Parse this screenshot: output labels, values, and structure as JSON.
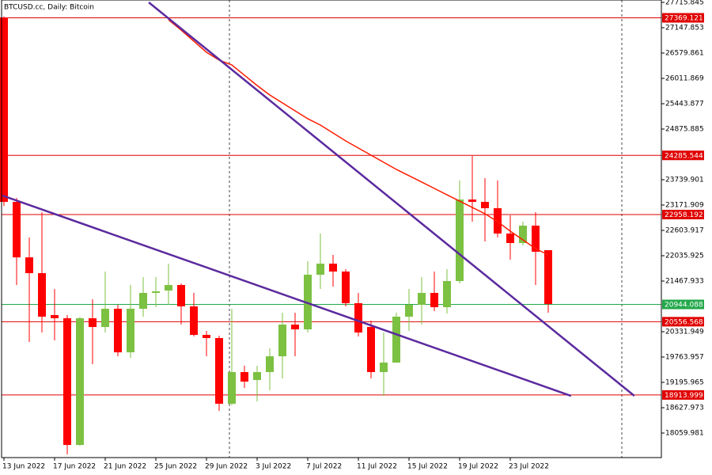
{
  "chart_data": {
    "type": "candlestick",
    "title": "BTCUSD.cc, Daily:  Bitcoin",
    "categories": [
      "13 Jun 2022",
      null,
      null,
      null,
      "17 Jun 2022",
      null,
      null,
      null,
      "21 Jun 2022",
      null,
      null,
      null,
      "25 Jun 2022",
      null,
      null,
      null,
      "29 Jun 2022",
      null,
      null,
      null,
      "3 Jul 2022",
      null,
      null,
      null,
      "7 Jul 2022",
      null,
      null,
      null,
      "11 Jul 2022",
      null,
      null,
      null,
      "15 Jul 2022",
      null,
      null,
      null,
      "19 Jul 2022",
      null,
      null,
      null,
      "23 Jul 2022",
      null,
      null,
      null
    ],
    "open": [
      27378,
      23243,
      21999,
      21645,
      20705,
      20634,
      17793,
      20634,
      20438,
      20847,
      19870,
      20847,
      21202,
      21255,
      21379,
      20900,
      20261,
      20190,
      18717,
      19427,
      19249,
      19427,
      19781,
      20492,
      20385,
      21610,
      21858,
      21681,
      20971,
      20438,
      19427,
      19640,
      20669,
      20935,
      21202,
      20882,
      21468,
      23296,
      23243,
      23101,
      22533,
      22320,
      22710,
      22160
    ],
    "high": [
      27400,
      23331,
      22444,
      23012,
      21290,
      20705,
      20669,
      21060,
      21681,
      20935,
      21379,
      21557,
      21557,
      21858,
      21415,
      21202,
      20350,
      20243,
      20847,
      19569,
      19569,
      19959,
      20758,
      20758,
      21912,
      22533,
      22054,
      21734,
      21202,
      20580,
      20314,
      20758,
      21290,
      21557,
      21681,
      21734,
      23722,
      24272,
      23775,
      23722,
      22941,
      22799,
      23012,
      22160
    ],
    "low": [
      23150,
      21379,
      20101,
      20314,
      20137,
      17580,
      17776,
      19604,
      20314,
      19781,
      19746,
      20669,
      20882,
      20935,
      20492,
      20225,
      19781,
      18557,
      18681,
      19072,
      18770,
      19018,
      19285,
      19781,
      20314,
      21290,
      21344,
      20900,
      20225,
      19285,
      18894,
      19640,
      20350,
      20492,
      20793,
      20740,
      21415,
      22799,
      22355,
      22444,
      21947,
      22267,
      21379,
      20758
    ],
    "close": [
      23243,
      21999,
      21645,
      20669,
      20634,
      17793,
      20634,
      20438,
      20847,
      19870,
      20847,
      21202,
      21237,
      21379,
      20900,
      20261,
      20190,
      18717,
      19427,
      19214,
      19427,
      19781,
      20492,
      20385,
      21610,
      21858,
      21681,
      20971,
      20314,
      19427,
      19640,
      20669,
      20935,
      21202,
      20882,
      21468,
      23296,
      23243,
      23101,
      22533,
      22320,
      22710,
      22125,
      20953
    ],
    "up_color": "#7cc142",
    "down_color": "#ff0000",
    "ma": {
      "color": "#ff1a00",
      "values": [
        null,
        null,
        null,
        null,
        null,
        null,
        null,
        null,
        null,
        null,
        null,
        null,
        null,
        27325,
        27094,
        26846,
        26598,
        26420,
        26313,
        26082,
        25852,
        25639,
        25462,
        25284,
        25107,
        24965,
        24787,
        24610,
        24450,
        24290,
        24130,
        23971,
        23829,
        23687,
        23545,
        23402,
        23260,
        23118,
        22977,
        22799,
        22586,
        22391,
        22196,
        22054
      ]
    },
    "trendlines": [
      {
        "color": "#5b2a9e",
        "x": [
          11.44,
          49.8
        ],
        "y": [
          27716,
          18894
        ]
      },
      {
        "color": "#5b2a9e",
        "x": [
          -0.125,
          44.8
        ],
        "y": [
          23385,
          18894
        ]
      }
    ],
    "levels": [
      {
        "value": 27369.121,
        "color": "#e00000"
      },
      {
        "value": 24285.544,
        "color": "#e00000"
      },
      {
        "value": 22958.192,
        "color": "#e00000"
      },
      {
        "value": 20944.088,
        "color": "#22a84a"
      },
      {
        "value": 20556.568,
        "color": "#e00000"
      },
      {
        "value": 18913.999,
        "color": "#e00000"
      }
    ],
    "ylim": [
      17510,
      27769
    ],
    "yticks": [
      27715.845,
      27147.853,
      26579.861,
      26011.869,
      25443.877,
      24875.885,
      23739.901,
      23171.909,
      22603.917,
      22035.925,
      21467.933,
      20331.949,
      19763.957,
      19195.965,
      18627.973,
      18059.981
    ]
  }
}
